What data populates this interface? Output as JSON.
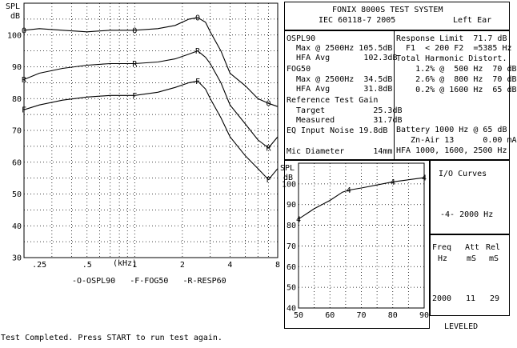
{
  "header": {
    "title": "FONIX 8000S TEST SYSTEM",
    "standard": "IEC 60118-7 2005",
    "ear": "Left Ear"
  },
  "main_chart": {
    "y_label_top": "SPL",
    "y_label_unit": "dB",
    "x_axis_unit": "(kHz)",
    "legend": "-O-OSPL90   -F-FOG50   -R-RESP60"
  },
  "measurements": {
    "ospl90": "OSPL90",
    "ospl90_max": "  Max @ 2500Hz 105.5dB",
    "ospl90_hfa": "  HFA Avg       102.3dB",
    "fog50": "FOG50",
    "fog50_max": "  Max @ 2500Hz  34.5dB",
    "fog50_hfa": "  HFA Avg       31.8dB",
    "ref_gain": "Reference Test Gain",
    "target": "  Target          25.3dB",
    "measured": "  Measured        31.7dB",
    "eq_noise": "EQ Input Noise 19.8dB",
    "mic": "Mic Diameter      14mm"
  },
  "distortion": {
    "response_limit": "Response Limit  71.7 dB",
    "f1f2": "  F1  < 200 F2  =5385 Hz",
    "thd_title": "Total Harmonic Distort.",
    "thd1": "    1.2% @  500 Hz  70 dB",
    "thd2": "    2.6% @  800 Hz  70 dB",
    "thd3": "    0.2% @ 1600 Hz  65 dB",
    "battery": "Battery 1000 Hz @ 65 dB",
    "zn_air": "   Zn-Air 13      0.00 mA",
    "hfa_freqs": "HFA 1000, 1600, 2500 Hz"
  },
  "io_panel": {
    "title": "I/O Curves",
    "curve": "-4- 2000 Hz"
  },
  "freq_panel": {
    "h_freq": "Freq",
    "h_att": "Att",
    "h_rel": "Rel",
    "u_freq": "Hz",
    "u_att": "mS",
    "u_rel": "mS",
    "v_freq": "2000",
    "v_att": "11",
    "v_rel": "29",
    "leveled": "LEVELED"
  },
  "status": "Test Completed. Press START to run test again.",
  "chart_data": [
    {
      "type": "line",
      "x_scale": "log",
      "x_unit": "kHz",
      "xlim": [
        0.2,
        8
      ],
      "x_ticks": [
        ".25",
        ".5",
        "1",
        "2",
        "4",
        "8"
      ],
      "ylim": [
        30,
        110
      ],
      "y_ticks": [
        "30",
        "40",
        "50",
        "60",
        "70",
        "80",
        "90",
        "100"
      ],
      "grid": true,
      "legend_position": "bottom",
      "series": [
        {
          "name": "OSPL90",
          "marker": "O",
          "x": [
            0.2,
            0.25,
            0.35,
            0.5,
            0.7,
            1.0,
            1.4,
            1.8,
            2.2,
            2.5,
            2.8,
            3.0,
            3.5,
            4.0,
            5.0,
            6.0,
            7.0,
            8.0
          ],
          "y": [
            101.5,
            102,
            101.5,
            101,
            101.5,
            101.5,
            102,
            103,
            105,
            105.5,
            104,
            101,
            95,
            88,
            84,
            80,
            78.5,
            77.5
          ]
        },
        {
          "name": "RESP60",
          "marker": "R",
          "x": [
            0.2,
            0.25,
            0.35,
            0.5,
            0.7,
            1.0,
            1.4,
            1.8,
            2.2,
            2.5,
            2.8,
            3.0,
            3.5,
            4.0,
            5.0,
            6.0,
            7.0,
            8.0
          ],
          "y": [
            86,
            88,
            89.5,
            90.5,
            91,
            91,
            91.5,
            92.5,
            94,
            95,
            93,
            91,
            85,
            78,
            72,
            67,
            64.5,
            68
          ]
        },
        {
          "name": "FOG50",
          "marker": "F",
          "x": [
            0.2,
            0.25,
            0.35,
            0.5,
            0.7,
            1.0,
            1.4,
            1.8,
            2.2,
            2.5,
            2.8,
            3.0,
            3.5,
            4.0,
            5.0,
            6.0,
            7.0,
            8.0
          ],
          "y": [
            76.5,
            78,
            79.5,
            80.5,
            81,
            81,
            82,
            83.5,
            85,
            85.5,
            83,
            80,
            74,
            68,
            62,
            58,
            54.5,
            58
          ]
        }
      ]
    },
    {
      "type": "line",
      "xlim": [
        50,
        90
      ],
      "x_ticks": [
        "50",
        "60",
        "70",
        "80",
        "90"
      ],
      "ylim": [
        40,
        110
      ],
      "y_ticks": [
        "40",
        "50",
        "60",
        "70",
        "80",
        "90",
        "100"
      ],
      "grid": true,
      "y_label_top": "SPL",
      "y_label_unit": "dB",
      "series": [
        {
          "name": "2000 Hz",
          "marker": "4",
          "x": [
            50,
            55,
            60,
            64,
            66,
            70,
            75,
            80,
            85,
            90
          ],
          "y": [
            83,
            88,
            92,
            96,
            97,
            98,
            99.5,
            101,
            102,
            103
          ]
        }
      ]
    }
  ]
}
